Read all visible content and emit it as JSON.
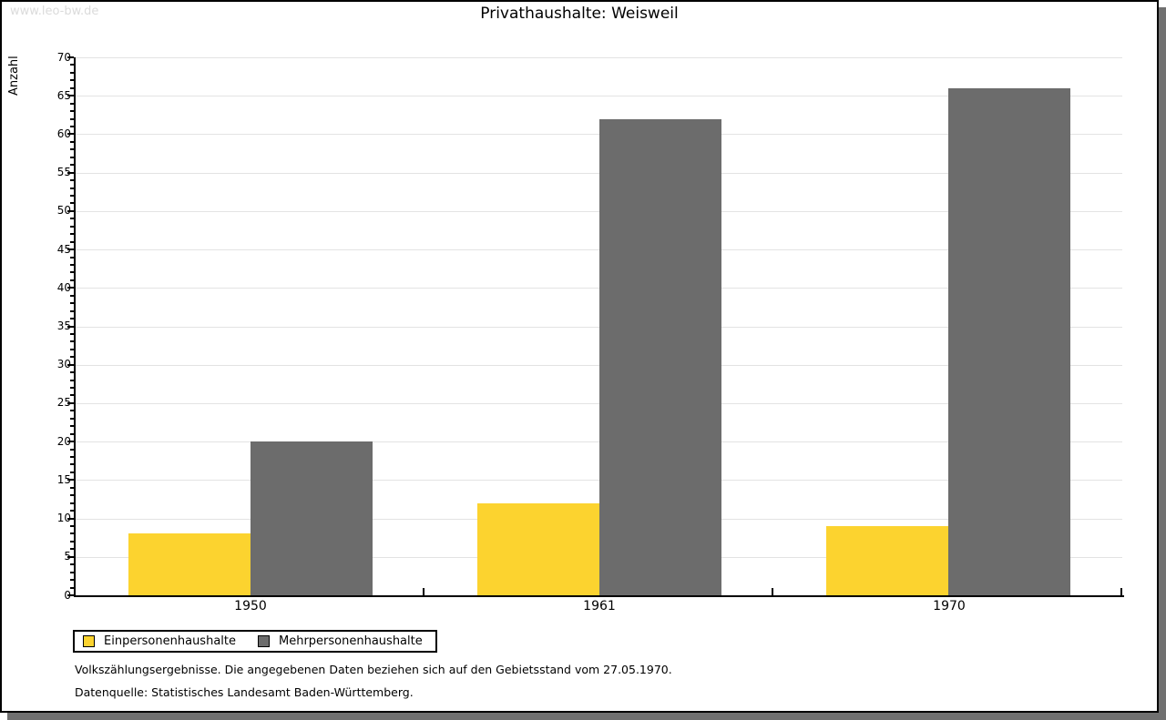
{
  "watermark": "www.leo-bw.de",
  "chart_data": {
    "type": "bar",
    "title": "Privathaushalte: Weisweil",
    "xlabel": "",
    "ylabel": "Anzahl",
    "categories": [
      "1950",
      "1961",
      "1970"
    ],
    "series": [
      {
        "name": "Einpersonenhaushalte",
        "color": "#fcd32f",
        "values": [
          8,
          12,
          9
        ]
      },
      {
        "name": "Mehrpersonenhaushalte",
        "color": "#6c6c6c",
        "values": [
          20,
          62,
          66
        ]
      }
    ],
    "ylim": [
      0,
      70
    ],
    "ytick_step": 5,
    "yminor_step": 1,
    "grid": "horizontal-major",
    "legend_position": "bottom-left"
  },
  "colors": {
    "grid": "#e3e3e3",
    "axis": "#000000",
    "shadow": "#707070",
    "watermark": "#dbdbdb"
  },
  "footer": {
    "line1": "Volkszählungsergebnisse. Die angegebenen Daten beziehen sich auf den Gebietsstand vom 27.05.1970.",
    "line2": "Datenquelle: Statistisches Landesamt Baden-Württemberg."
  }
}
